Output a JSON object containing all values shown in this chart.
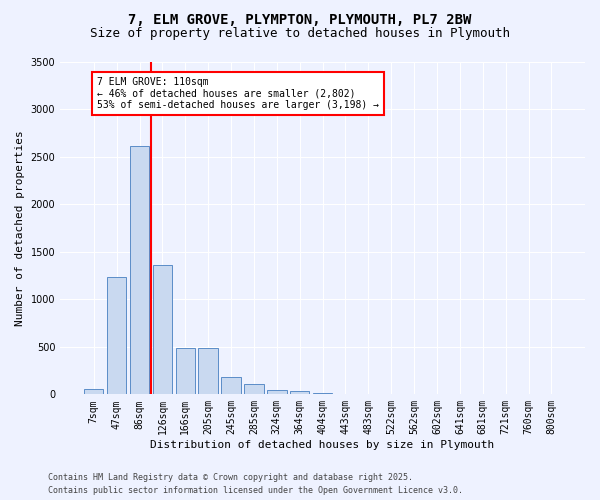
{
  "title": "7, ELM GROVE, PLYMPTON, PLYMOUTH, PL7 2BW",
  "subtitle": "Size of property relative to detached houses in Plymouth",
  "xlabel": "Distribution of detached houses by size in Plymouth",
  "ylabel": "Number of detached properties",
  "bar_labels": [
    "7sqm",
    "47sqm",
    "86sqm",
    "126sqm",
    "166sqm",
    "205sqm",
    "245sqm",
    "285sqm",
    "324sqm",
    "364sqm",
    "404sqm",
    "443sqm",
    "483sqm",
    "522sqm",
    "562sqm",
    "602sqm",
    "641sqm",
    "681sqm",
    "721sqm",
    "760sqm",
    "800sqm"
  ],
  "bar_values": [
    55,
    1230,
    2610,
    1360,
    490,
    490,
    185,
    110,
    50,
    30,
    10,
    0,
    0,
    0,
    0,
    0,
    0,
    0,
    0,
    0,
    0
  ],
  "bar_color": "#c9d9f0",
  "bar_edge_color": "#5b8dc8",
  "vline_color": "red",
  "ylim": [
    0,
    3500
  ],
  "yticks": [
    0,
    500,
    1000,
    1500,
    2000,
    2500,
    3000,
    3500
  ],
  "annotation_text": "7 ELM GROVE: 110sqm\n← 46% of detached houses are smaller (2,802)\n53% of semi-detached houses are larger (3,198) →",
  "bg_color": "#eef2ff",
  "plot_bg_color": "#eef2ff",
  "footer1": "Contains HM Land Registry data © Crown copyright and database right 2025.",
  "footer2": "Contains public sector information licensed under the Open Government Licence v3.0.",
  "grid_color": "#ffffff",
  "title_fontsize": 10,
  "subtitle_fontsize": 9,
  "label_fontsize": 8,
  "tick_fontsize": 7,
  "annot_fontsize": 7,
  "footer_fontsize": 6
}
